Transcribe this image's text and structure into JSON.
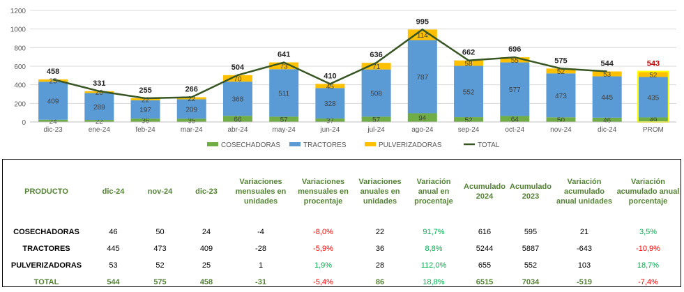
{
  "chart_data": {
    "type": "bar",
    "stacked": true,
    "categories": [
      "dic-23",
      "ene-24",
      "feb-24",
      "mar-24",
      "abr-24",
      "may-24",
      "jun-24",
      "jul-24",
      "ago-24",
      "sep-24",
      "oct-24",
      "nov-24",
      "dic-24",
      "PROM"
    ],
    "series": [
      {
        "name": "COSECHADORAS",
        "color": "#70ad47",
        "values": [
          24,
          22,
          36,
          35,
          66,
          57,
          37,
          57,
          94,
          52,
          64,
          50,
          46,
          49
        ]
      },
      {
        "name": "TRACTORES",
        "color": "#5b9bd5",
        "values": [
          409,
          289,
          197,
          209,
          368,
          511,
          328,
          508,
          787,
          552,
          577,
          473,
          445,
          435
        ]
      },
      {
        "name": "PULVERIZADORAS",
        "color": "#ffc000",
        "values": [
          25,
          20,
          22,
          22,
          70,
          73,
          45,
          71,
          114,
          58,
          55,
          52,
          53,
          52
        ]
      }
    ],
    "total": {
      "name": "TOTAL",
      "color": "#375623",
      "values": [
        458,
        331,
        255,
        266,
        504,
        641,
        410,
        636,
        995,
        662,
        696,
        575,
        544,
        543
      ]
    },
    "ylim": [
      0,
      1200
    ],
    "yticks": [
      0,
      200,
      400,
      600,
      800,
      1000,
      1200
    ],
    "highlight_color": "#c00000",
    "legend_position": "bottom"
  },
  "table": {
    "headers": [
      "PRODUCTO",
      "dic-24",
      "nov-24",
      "dic-23",
      "Variaciones mensuales en unidades",
      "Variaciones mensuales en procentaje",
      "Variaciones anuales en unidades",
      "Variación anual en procentaje",
      "Acumulado 2024",
      "Acumulado 2023",
      "Variación acumulado anual unidades",
      "Variación acumulado anual porcentaje"
    ],
    "rows": [
      [
        "COSECHADORAS",
        "46",
        "50",
        "24",
        "-4",
        "-8,0%",
        "22",
        "91,7%",
        "616",
        "595",
        "21",
        "3,5%"
      ],
      [
        "TRACTORES",
        "445",
        "473",
        "409",
        "-28",
        "-5,9%",
        "36",
        "8,8%",
        "5244",
        "5887",
        "-643",
        "-10,9%"
      ],
      [
        "PULVERIZADORAS",
        "53",
        "52",
        "25",
        "1",
        "1,9%",
        "28",
        "112,0%",
        "655",
        "552",
        "103",
        "18,7%"
      ],
      [
        "TOTAL",
        "544",
        "575",
        "458",
        "-31",
        "-5,4%",
        "86",
        "18,8%",
        "6515",
        "7034",
        "-519",
        "-7,4%"
      ]
    ]
  }
}
